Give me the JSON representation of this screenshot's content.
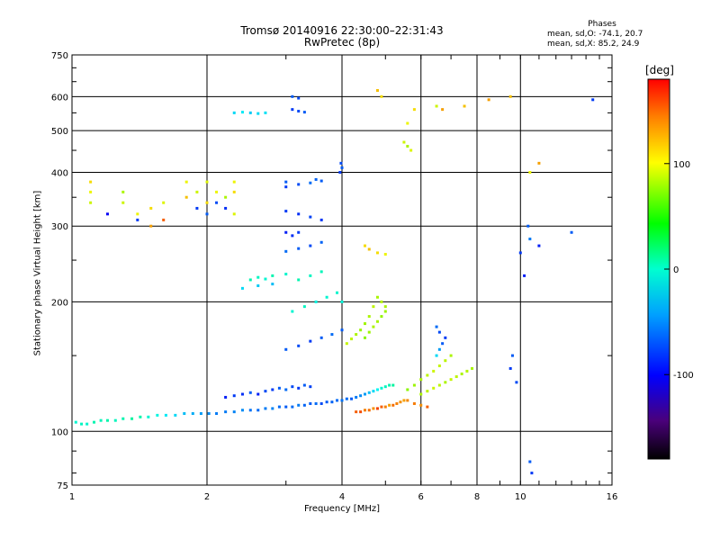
{
  "header": {
    "title_line1": "Tromsø 20140916 22:30:00–22:31:43",
    "title_line2": "RwPretec (8p)"
  },
  "stats": {
    "heading": "Phases",
    "line1": "mean, sd,O: -74.1, 20.7",
    "line2": "mean, sd,X: 85.2, 24.9"
  },
  "chart_data": {
    "type": "scatter",
    "title": "Tromsø 20140916 22:30:00–22:31:43",
    "subtitle": "RwPretec (8p)",
    "xlabel": "Frequency [MHz]",
    "ylabel": "Stationary phase Virtual Height [km]",
    "x_scale": "log",
    "y_scale": "log",
    "xlim": [
      1,
      16
    ],
    "ylim": [
      75,
      750
    ],
    "x_ticks": [
      1,
      2,
      4,
      6,
      8,
      10,
      16
    ],
    "y_ticks": [
      75,
      100,
      200,
      300,
      400,
      500,
      600,
      750
    ],
    "grid": true,
    "colorbar": {
      "label": "[deg]",
      "range": [
        -180,
        180
      ],
      "ticks": [
        -100,
        0,
        100
      ]
    },
    "color_key": "phase in deg",
    "series": [
      {
        "points": [
          [
            1.02,
            105,
            -40
          ],
          [
            1.05,
            104,
            -35
          ],
          [
            1.08,
            104,
            -38
          ],
          [
            1.12,
            105,
            -30
          ],
          [
            1.16,
            106,
            -32
          ],
          [
            1.2,
            106,
            -28
          ],
          [
            1.25,
            106,
            -34
          ],
          [
            1.3,
            107,
            -30
          ],
          [
            1.36,
            107,
            -25
          ],
          [
            1.42,
            108,
            -28
          ],
          [
            1.48,
            108,
            -40
          ],
          [
            1.55,
            109,
            -45
          ],
          [
            1.62,
            109,
            -55
          ],
          [
            1.7,
            109,
            -60
          ],
          [
            1.78,
            110,
            -70
          ],
          [
            1.86,
            110,
            -75
          ],
          [
            1.94,
            110,
            -80
          ],
          [
            2.02,
            110,
            -85
          ],
          [
            2.1,
            110,
            -90
          ],
          [
            2.2,
            111,
            -90
          ],
          [
            2.3,
            111,
            -88
          ],
          [
            2.4,
            112,
            -85
          ],
          [
            2.5,
            112,
            -92
          ],
          [
            2.6,
            112,
            -95
          ],
          [
            2.7,
            113,
            -90
          ],
          [
            2.8,
            113,
            -88
          ],
          [
            2.9,
            114,
            -95
          ],
          [
            3.0,
            114,
            -100
          ],
          [
            3.1,
            114,
            -95
          ],
          [
            3.2,
            115,
            -90
          ],
          [
            3.3,
            115,
            -98
          ],
          [
            3.4,
            116,
            -100
          ],
          [
            3.5,
            116,
            -95
          ],
          [
            3.6,
            116,
            -105
          ],
          [
            3.7,
            117,
            -100
          ],
          [
            3.8,
            117,
            -98
          ],
          [
            3.9,
            118,
            -95
          ],
          [
            4.0,
            118,
            -92
          ],
          [
            4.1,
            119,
            -95
          ],
          [
            4.2,
            119,
            -100
          ],
          [
            4.3,
            120,
            -90
          ],
          [
            4.4,
            121,
            -85
          ],
          [
            4.5,
            122,
            -80
          ],
          [
            4.6,
            123,
            -70
          ],
          [
            4.7,
            124,
            -60
          ],
          [
            4.8,
            125,
            -50
          ],
          [
            4.9,
            126,
            -40
          ],
          [
            5.0,
            127,
            -35
          ],
          [
            5.1,
            128,
            -30
          ],
          [
            5.2,
            128,
            -25
          ]
        ]
      },
      {
        "points": [
          [
            2.2,
            120,
            -120
          ],
          [
            2.3,
            121,
            -110
          ],
          [
            2.4,
            122,
            -115
          ],
          [
            2.5,
            123,
            -100
          ],
          [
            2.6,
            122,
            -120
          ],
          [
            2.7,
            124,
            -105
          ],
          [
            2.8,
            125,
            -110
          ],
          [
            2.9,
            126,
            -100
          ],
          [
            3.0,
            125,
            -95
          ],
          [
            3.1,
            127,
            -105
          ],
          [
            3.2,
            126,
            -112
          ],
          [
            3.3,
            128,
            -100
          ],
          [
            3.4,
            127,
            -108
          ]
        ]
      },
      {
        "points": [
          [
            4.3,
            111,
            150
          ],
          [
            4.4,
            111,
            155
          ],
          [
            4.5,
            112,
            140
          ],
          [
            4.6,
            112,
            145
          ],
          [
            4.7,
            113,
            135
          ],
          [
            4.8,
            113,
            160
          ],
          [
            4.9,
            114,
            150
          ],
          [
            5.0,
            114,
            140
          ],
          [
            5.1,
            115,
            130
          ],
          [
            5.2,
            115,
            145
          ],
          [
            5.3,
            116,
            140
          ],
          [
            5.4,
            117,
            135
          ],
          [
            5.5,
            118,
            130
          ],
          [
            5.6,
            118,
            138
          ],
          [
            5.8,
            116,
            142
          ],
          [
            6.0,
            115,
            135
          ],
          [
            6.2,
            114,
            150
          ]
        ]
      },
      {
        "points": [
          [
            6.0,
            122,
            80
          ],
          [
            6.2,
            124,
            85
          ],
          [
            6.4,
            126,
            90
          ],
          [
            6.6,
            128,
            85
          ],
          [
            6.8,
            130,
            80
          ],
          [
            7.0,
            132,
            88
          ],
          [
            7.2,
            134,
            85
          ],
          [
            7.4,
            136,
            80
          ],
          [
            7.6,
            138,
            82
          ],
          [
            7.8,
            140,
            78
          ],
          [
            5.6,
            125,
            70
          ],
          [
            5.8,
            128,
            75
          ],
          [
            6.0,
            132,
            80
          ],
          [
            6.2,
            135,
            85
          ],
          [
            6.4,
            138,
            90
          ],
          [
            6.6,
            142,
            88
          ],
          [
            6.8,
            146,
            84
          ],
          [
            7.0,
            150,
            80
          ],
          [
            6.5,
            150,
            -60
          ],
          [
            6.6,
            155,
            -80
          ],
          [
            6.7,
            160,
            -100
          ],
          [
            6.8,
            165,
            -110
          ],
          [
            6.6,
            170,
            -105
          ],
          [
            6.5,
            175,
            -95
          ]
        ]
      },
      {
        "points": [
          [
            4.5,
            165,
            70
          ],
          [
            4.6,
            170,
            75
          ],
          [
            4.7,
            175,
            80
          ],
          [
            4.8,
            180,
            78
          ],
          [
            4.9,
            185,
            72
          ],
          [
            5.0,
            190,
            75
          ],
          [
            5.0,
            195,
            80
          ],
          [
            4.9,
            200,
            82
          ],
          [
            4.8,
            205,
            78
          ],
          [
            4.7,
            195,
            85
          ],
          [
            4.6,
            185,
            80
          ],
          [
            4.5,
            178,
            76
          ],
          [
            4.4,
            172,
            74
          ],
          [
            4.3,
            168,
            80
          ],
          [
            4.2,
            164,
            85
          ],
          [
            4.1,
            160,
            88
          ]
        ]
      },
      {
        "points": [
          [
            3.0,
            155,
            -100
          ],
          [
            3.2,
            158,
            -105
          ],
          [
            3.4,
            162,
            -110
          ],
          [
            3.6,
            165,
            -100
          ],
          [
            3.8,
            168,
            -95
          ],
          [
            4.0,
            172,
            -100
          ],
          [
            3.1,
            190,
            -40
          ],
          [
            3.3,
            195,
            -35
          ],
          [
            3.5,
            200,
            -45
          ],
          [
            3.7,
            205,
            -40
          ],
          [
            3.9,
            210,
            -38
          ],
          [
            4.0,
            200,
            -42
          ],
          [
            3.2,
            225,
            -30
          ],
          [
            3.4,
            230,
            -35
          ],
          [
            3.6,
            235,
            -32
          ],
          [
            2.5,
            225,
            -30
          ],
          [
            2.6,
            228,
            -35
          ],
          [
            2.7,
            226,
            -40
          ],
          [
            2.8,
            230,
            -30
          ],
          [
            3.0,
            232,
            -38
          ],
          [
            2.4,
            215,
            -60
          ],
          [
            2.6,
            218,
            -65
          ],
          [
            2.8,
            220,
            -70
          ],
          [
            3.0,
            262,
            -95
          ],
          [
            3.2,
            266,
            -100
          ],
          [
            3.4,
            270,
            -105
          ],
          [
            3.6,
            275,
            -98
          ],
          [
            3.0,
            325,
            -110
          ],
          [
            3.2,
            320,
            -115
          ],
          [
            3.4,
            315,
            -108
          ],
          [
            3.6,
            310,
            -112
          ],
          [
            3.0,
            290,
            -120
          ],
          [
            3.1,
            285,
            -115
          ],
          [
            3.2,
            290,
            -110
          ]
        ]
      },
      {
        "points": [
          [
            3.0,
            380,
            -100
          ],
          [
            3.2,
            375,
            -105
          ],
          [
            3.4,
            378,
            -95
          ],
          [
            3.6,
            382,
            -100
          ],
          [
            3.0,
            370,
            -110
          ],
          [
            3.5,
            385,
            -98
          ],
          [
            3.98,
            420,
            -105
          ],
          [
            4.0,
            410,
            -100
          ],
          [
            3.96,
            400,
            -110
          ],
          [
            3.1,
            560,
            -110
          ],
          [
            3.2,
            555,
            -105
          ],
          [
            3.3,
            552,
            -100
          ],
          [
            2.3,
            550,
            -60
          ],
          [
            2.4,
            552,
            -55
          ],
          [
            2.5,
            550,
            -65
          ],
          [
            2.6,
            548,
            -60
          ],
          [
            2.7,
            550,
            -58
          ],
          [
            3.1,
            600,
            -100
          ],
          [
            3.2,
            595,
            -105
          ]
        ]
      },
      {
        "points": [
          [
            1.1,
            360,
            100
          ],
          [
            1.1,
            380,
            110
          ],
          [
            1.1,
            340,
            90
          ],
          [
            1.3,
            360,
            80
          ],
          [
            1.3,
            340,
            90
          ],
          [
            1.4,
            320,
            100
          ],
          [
            1.5,
            330,
            110
          ],
          [
            1.6,
            340,
            95
          ],
          [
            1.8,
            350,
            120
          ],
          [
            1.8,
            380,
            100
          ],
          [
            1.9,
            360,
            90
          ],
          [
            2.0,
            340,
            110
          ],
          [
            2.0,
            380,
            95
          ],
          [
            2.1,
            360,
            100
          ],
          [
            2.2,
            350,
            80
          ],
          [
            2.3,
            360,
            110
          ],
          [
            2.3,
            380,
            100
          ],
          [
            2.3,
            320,
            95
          ],
          [
            1.9,
            330,
            -110
          ],
          [
            2.0,
            320,
            -100
          ],
          [
            2.1,
            340,
            -105
          ],
          [
            2.2,
            330,
            -115
          ],
          [
            1.6,
            310,
            150
          ],
          [
            1.5,
            300,
            130
          ],
          [
            1.2,
            320,
            -130
          ],
          [
            1.4,
            310,
            -110
          ]
        ]
      },
      {
        "points": [
          [
            4.5,
            270,
            110
          ],
          [
            4.6,
            265,
            120
          ],
          [
            4.8,
            260,
            110
          ],
          [
            5.0,
            258,
            100
          ],
          [
            4.8,
            620,
            120
          ],
          [
            4.9,
            600,
            110
          ],
          [
            5.6,
            520,
            100
          ],
          [
            5.8,
            560,
            110
          ],
          [
            6.5,
            570,
            90
          ],
          [
            6.7,
            560,
            130
          ],
          [
            7.5,
            570,
            120
          ],
          [
            5.5,
            470,
            90
          ],
          [
            5.6,
            460,
            80
          ],
          [
            5.7,
            450,
            95
          ],
          [
            9.5,
            600,
            120
          ],
          [
            8.5,
            590,
            130
          ],
          [
            10.5,
            400,
            100
          ],
          [
            11.0,
            420,
            130
          ]
        ]
      },
      {
        "points": [
          [
            10.0,
            260,
            -110
          ],
          [
            10.4,
            300,
            -100
          ],
          [
            10.5,
            280,
            -90
          ],
          [
            11.0,
            270,
            -120
          ],
          [
            14.5,
            590,
            -110
          ],
          [
            13.0,
            290,
            -100
          ],
          [
            10.2,
            230,
            -120
          ],
          [
            9.5,
            140,
            -110
          ],
          [
            9.6,
            150,
            -100
          ],
          [
            9.8,
            130,
            -105
          ],
          [
            10.5,
            85,
            -100
          ],
          [
            10.6,
            80,
            -110
          ]
        ]
      }
    ]
  }
}
